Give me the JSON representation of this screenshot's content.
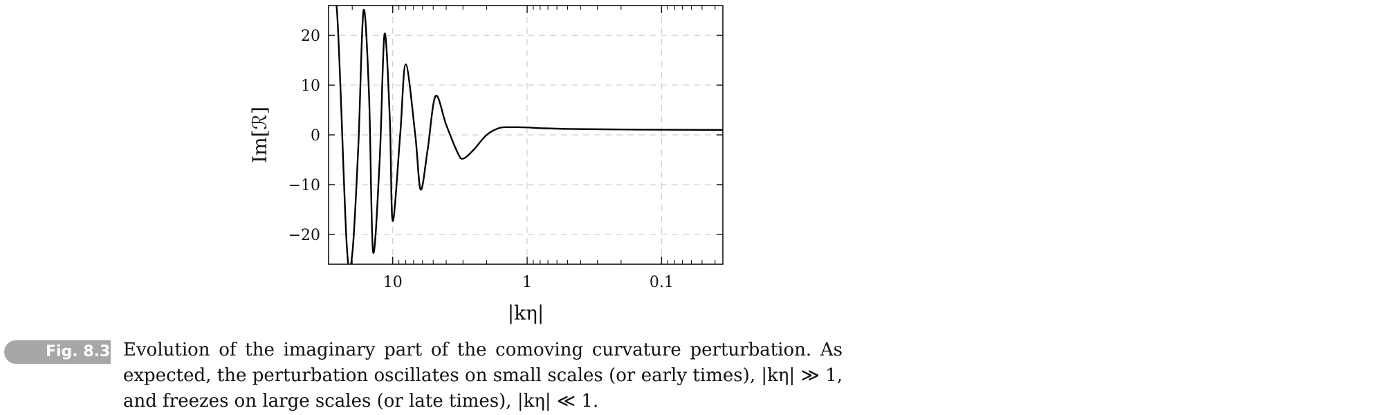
{
  "chart_data": {
    "type": "line",
    "title": "",
    "xlabel": "|kη|",
    "ylabel": "Im[ℛ]",
    "x_scale": "log",
    "x_reversed": true,
    "xlim": [
      30,
      0.035
    ],
    "ylim": [
      -26,
      26
    ],
    "x_ticks": [
      {
        "value": 10,
        "label": "10"
      },
      {
        "value": 1,
        "label": "1"
      },
      {
        "value": 0.1,
        "label": "0.1"
      }
    ],
    "y_ticks": [
      {
        "value": 20,
        "label": "20"
      },
      {
        "value": 10,
        "label": "10"
      },
      {
        "value": 0,
        "label": "0"
      },
      {
        "value": -10,
        "label": "−10"
      },
      {
        "value": -20,
        "label": "−20"
      }
    ],
    "grid": true,
    "series": [
      {
        "points": [
          [
            30.0,
            28.0
          ],
          [
            26.0,
            25.0
          ],
          [
            22.0,
            -22.0
          ],
          [
            20.0,
            -24.0
          ],
          [
            18.0,
            -2.0
          ],
          [
            16.5,
            25.0
          ],
          [
            15.0,
            8.0
          ],
          [
            14.0,
            -23.5
          ],
          [
            12.5,
            -5.0
          ],
          [
            11.5,
            20.3
          ],
          [
            10.5,
            3.0
          ],
          [
            10.0,
            -17.3
          ],
          [
            8.8,
            0.0
          ],
          [
            8.0,
            14.2
          ],
          [
            6.8,
            0.0
          ],
          [
            6.2,
            -11.0
          ],
          [
            5.5,
            -3.0
          ],
          [
            4.8,
            7.8
          ],
          [
            4.0,
            2.0
          ],
          [
            3.3,
            -3.5
          ],
          [
            3.0,
            -4.8
          ],
          [
            2.5,
            -3.0
          ],
          [
            2.0,
            0.0
          ],
          [
            1.6,
            1.4
          ],
          [
            1.3,
            1.55
          ],
          [
            1.0,
            1.5
          ],
          [
            0.8,
            1.35
          ],
          [
            0.5,
            1.2
          ],
          [
            0.2,
            1.08
          ],
          [
            0.1,
            1.03
          ],
          [
            0.035,
            1.0
          ]
        ]
      }
    ]
  },
  "caption": {
    "badge": "Fig. 8.3",
    "text": "Evolution of the imaginary part of the comoving curvature perturbation. As expected, the perturbation oscillates on small scales (or early times), |kη| ≫ 1, and freezes on large scales (or late times), |kη| ≪ 1."
  }
}
